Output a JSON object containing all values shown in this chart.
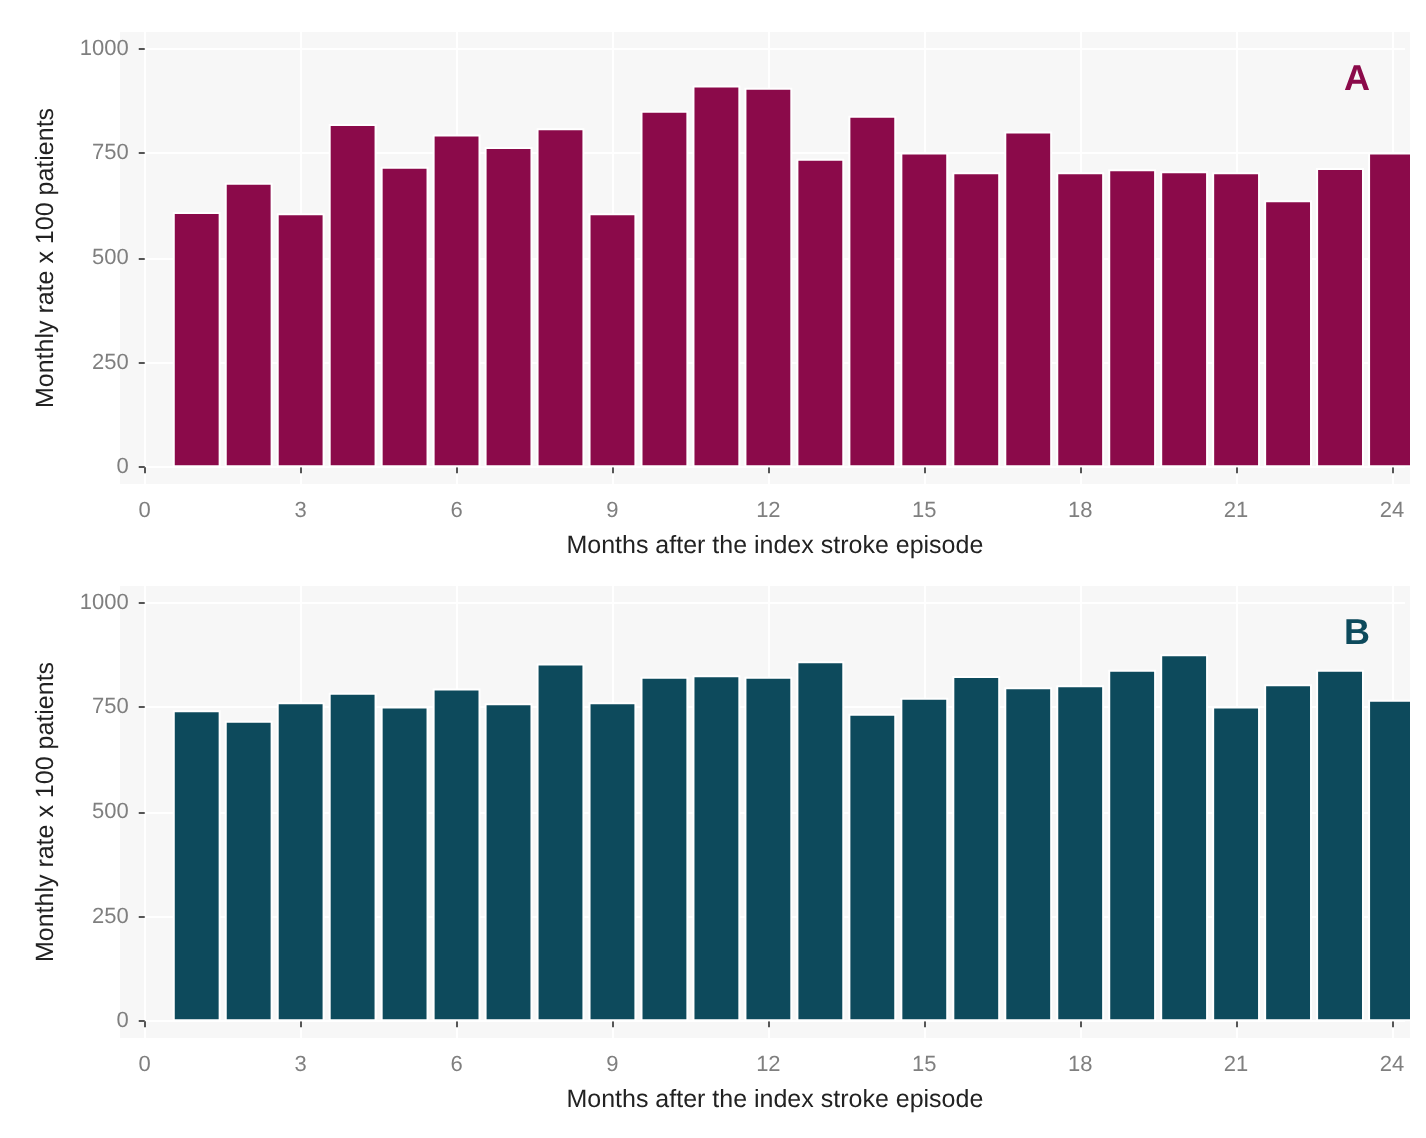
{
  "chart_data": [
    {
      "type": "bar",
      "xlabel": "Months after the index stroke episode",
      "ylabel": "Monthly rate x 100 patients",
      "annotations": [
        "A"
      ],
      "x": [
        1,
        2,
        3,
        4,
        5,
        6,
        7,
        8,
        9,
        10,
        11,
        12,
        13,
        14,
        15,
        16,
        17,
        18,
        19,
        20,
        21,
        22,
        23,
        24
      ],
      "series": [
        {
          "color": "#8b0a4a",
          "values": [
            610,
            680,
            607,
            820,
            718,
            795,
            765,
            810,
            607,
            852,
            912,
            907,
            737,
            840,
            752,
            705,
            802,
            705,
            712,
            707,
            705,
            638,
            715,
            752
          ]
        }
      ],
      "xlim": [
        0,
        24.25
      ],
      "xticks": [
        0,
        3,
        6,
        9,
        12,
        15,
        18,
        21,
        24
      ],
      "ylim": [
        -40,
        1040
      ],
      "yticks": [
        0,
        250,
        500,
        750,
        1000
      ],
      "grid": true
    },
    {
      "type": "bar",
      "xlabel": "Months after the index stroke episode",
      "ylabel": "Monthly rate x 100 patients",
      "annotations": [
        "B"
      ],
      "x": [
        1,
        2,
        3,
        4,
        5,
        6,
        7,
        8,
        9,
        10,
        11,
        12,
        13,
        14,
        15,
        16,
        17,
        18,
        19,
        20,
        21,
        22,
        23,
        24
      ],
      "series": [
        {
          "color": "#0d4a5c",
          "values": [
            743,
            718,
            762,
            785,
            752,
            795,
            760,
            855,
            762,
            823,
            827,
            823,
            860,
            735,
            773,
            825,
            798,
            803,
            840,
            877,
            752,
            805,
            840,
            768
          ]
        }
      ],
      "xlim": [
        0,
        24.25
      ],
      "xticks": [
        0,
        3,
        6,
        9,
        12,
        15,
        18,
        21,
        24
      ],
      "ylim": [
        -40,
        1040
      ],
      "yticks": [
        0,
        250,
        500,
        750,
        1000
      ],
      "grid": true
    }
  ]
}
